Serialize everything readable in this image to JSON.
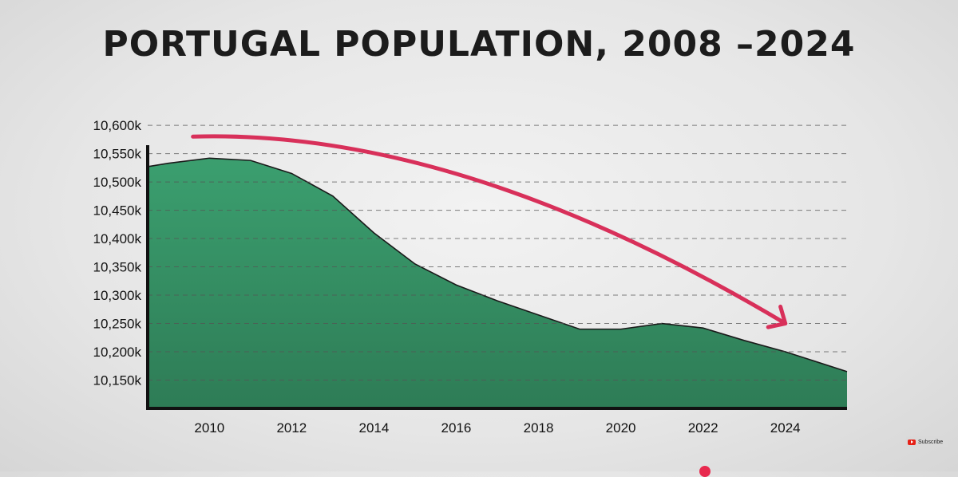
{
  "chart_data": {
    "type": "area",
    "title": "PORTUGAL POPULATION, 2008 –2024",
    "xlabel": "",
    "ylabel": "",
    "x": [
      2008.5,
      2009,
      2010,
      2011,
      2012,
      2013,
      2014,
      2015,
      2016,
      2017,
      2018,
      2019,
      2020,
      2021,
      2022,
      2023,
      2024,
      2025.5
    ],
    "values": [
      10527,
      10533,
      10542,
      10538,
      10515,
      10475,
      10410,
      10355,
      10318,
      10290,
      10265,
      10240,
      10240,
      10250,
      10242,
      10220,
      10200,
      10165
    ],
    "x_ticks": [
      2010,
      2012,
      2014,
      2016,
      2018,
      2020,
      2022,
      2024
    ],
    "x_tick_labels": [
      "2010",
      "2012",
      "2014",
      "2016",
      "2018",
      "2020",
      "2022",
      "2024"
    ],
    "y_ticks": [
      10150,
      10200,
      10250,
      10300,
      10350,
      10400,
      10450,
      10500,
      10550,
      10600
    ],
    "y_tick_labels": [
      "10,150k",
      "10,200k",
      "10,250k",
      "10,300k",
      "10,350k",
      "10,400k",
      "10,450k",
      "10,500k",
      "10,550k",
      "10,600k"
    ],
    "xlim": [
      2008.5,
      2025.5
    ],
    "ylim": [
      10100,
      10610
    ],
    "grid": "horizontal-dashed",
    "fill_color": "#3a9a6b",
    "line_color": "#1a1a1a",
    "trend_arrow_color": "#d8305a",
    "annotations": [
      {
        "type": "trend-arrow",
        "from": [
          2009.6,
          10580
        ],
        "to": [
          2024.0,
          10250
        ]
      }
    ]
  },
  "badge": {
    "label": "Subscribe",
    "icon": "youtube-icon",
    "color": "#e62117"
  }
}
